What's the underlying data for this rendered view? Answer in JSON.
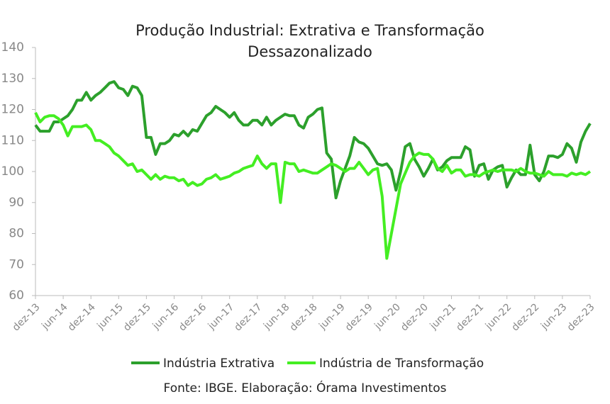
{
  "chart_data": {
    "type": "line",
    "title": "Produção Industrial: Extrativa e Transformação",
    "subtitle": "Dessazonalizado",
    "source": "Fonte: IBGE. Elaboração: Órama Investimentos",
    "categories": [
      "dez-13",
      null,
      null,
      null,
      null,
      null,
      "jun-14",
      null,
      null,
      null,
      null,
      null,
      "dez-14",
      null,
      null,
      null,
      null,
      null,
      "jun-15",
      null,
      null,
      null,
      null,
      null,
      "dez-15",
      null,
      null,
      null,
      null,
      null,
      "jun-16",
      null,
      null,
      null,
      null,
      null,
      "dez-16",
      null,
      null,
      null,
      null,
      null,
      "jun-17",
      null,
      null,
      null,
      null,
      null,
      "dez-17",
      null,
      null,
      null,
      null,
      null,
      "jun-18",
      null,
      null,
      null,
      null,
      null,
      "dez-18",
      null,
      null,
      null,
      null,
      null,
      "jun-19",
      null,
      null,
      null,
      null,
      null,
      "dez-19",
      null,
      null,
      null,
      null,
      null,
      "jun-20",
      null,
      null,
      null,
      null,
      null,
      "dez-20",
      null,
      null,
      null,
      null,
      null,
      "jun-21",
      null,
      null,
      null,
      null,
      null,
      "dez-21",
      null,
      null,
      null,
      null,
      null,
      "jun-22",
      null,
      null,
      null,
      null,
      null,
      "dez-22",
      null,
      null,
      null,
      null,
      null,
      "jun-23",
      null,
      null,
      null,
      null,
      null,
      "dez-23"
    ],
    "series": [
      {
        "name": "Indústria Extrativa",
        "color": "#2ca02c",
        "values": [
          115,
          113,
          113,
          113,
          116,
          116,
          117,
          118,
          120,
          123,
          123,
          125.5,
          123,
          124.5,
          125.5,
          127,
          128.5,
          129,
          127,
          126.5,
          124.5,
          127.5,
          127,
          124.5,
          111,
          111,
          105.5,
          109,
          109,
          110,
          112,
          111.5,
          113,
          111.5,
          113.5,
          113,
          115.5,
          118,
          119,
          121,
          120,
          119,
          117.5,
          119,
          116.5,
          115,
          115,
          116.5,
          116.5,
          115,
          117.5,
          115,
          116.5,
          117.5,
          118.5,
          118,
          118,
          115,
          114,
          117.5,
          118.5,
          120,
          120.5,
          106,
          104,
          91.5,
          97,
          101,
          105,
          111,
          109.5,
          109,
          107.5,
          105,
          102.5,
          102,
          102.5,
          100.5,
          94,
          100,
          108,
          109,
          104,
          101.5,
          98.5,
          101,
          104,
          100.5,
          101.5,
          103.5,
          104.5,
          104.5,
          104.5,
          108,
          107,
          98.5,
          102,
          102.5,
          97.5,
          100.5,
          101.5,
          102,
          95,
          98,
          100.5,
          99,
          99,
          108.5,
          99,
          97,
          100,
          105,
          105,
          104.5,
          105.5,
          109,
          107.5,
          103,
          109.5,
          113,
          115.5
        ]
      },
      {
        "name": "Indústria de Transformação",
        "color": "#44ee22",
        "values": [
          119,
          116,
          117.5,
          118,
          118,
          117,
          115,
          111.5,
          114.5,
          114.5,
          114.5,
          115,
          113.5,
          110,
          110,
          109,
          108,
          106,
          105,
          103.5,
          102,
          102.5,
          100,
          100.5,
          99,
          97.5,
          99,
          97.5,
          98.5,
          98,
          98,
          97,
          97.5,
          95.5,
          96.5,
          95.5,
          96,
          97.5,
          98,
          99,
          97.5,
          98,
          98.5,
          99.5,
          100,
          101,
          101.5,
          102,
          105,
          102.5,
          101,
          102.5,
          102.5,
          90,
          103,
          102.5,
          102.5,
          100,
          100.5,
          100,
          99.5,
          99.5,
          100.5,
          101.5,
          102.5,
          102,
          101,
          100,
          101,
          101,
          103,
          101,
          99,
          100.5,
          101,
          92,
          72,
          80,
          88,
          96,
          99.5,
          103,
          105,
          106,
          105.5,
          105.5,
          104,
          101,
          100,
          102,
          99.5,
          100.5,
          100.5,
          98.5,
          99,
          99,
          98.5,
          99.5,
          100,
          100.5,
          100,
          100.5,
          100.5,
          100.5,
          100,
          101,
          100,
          99.5,
          99.5,
          99,
          98.5,
          100,
          99,
          99,
          99,
          98.5,
          99.5,
          99,
          99.5,
          99,
          100
        ]
      }
    ],
    "ylim": [
      60,
      140
    ],
    "yticks": [
      60,
      70,
      80,
      90,
      100,
      110,
      120,
      130,
      140
    ],
    "grid": false,
    "legend": "bottom"
  }
}
